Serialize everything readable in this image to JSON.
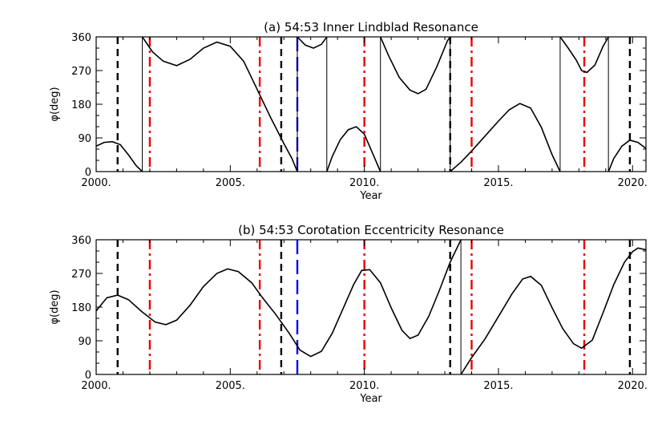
{
  "chart_data": [
    {
      "type": "line",
      "title": "(a) 54:53 Inner Lindblad Resonance",
      "xlabel": "Year",
      "ylabel": "φ(deg)",
      "xlim": [
        2000,
        2020.5
      ],
      "ylim": [
        0,
        360
      ],
      "xticks": [
        2000,
        2005,
        2010,
        2015,
        2020
      ],
      "xtick_labels": [
        "2000.",
        "2005.",
        "2010.",
        "2015.",
        "2020."
      ],
      "yticks": [
        0,
        90,
        180,
        270,
        360
      ],
      "ytick_labels": [
        "0",
        "90",
        "180",
        "270",
        "360"
      ],
      "series": [
        {
          "name": "phi",
          "color": "#000000",
          "segments": [
            [
              [
                2000.0,
                68
              ],
              [
                2000.3,
                78
              ],
              [
                2000.6,
                80
              ],
              [
                2000.9,
                72
              ],
              [
                2001.2,
                45
              ],
              [
                2001.5,
                15
              ],
              [
                2001.72,
                0
              ]
            ],
            [
              [
                2001.72,
                360
              ],
              [
                2002.1,
                320
              ],
              [
                2002.5,
                295
              ],
              [
                2003.0,
                283
              ],
              [
                2003.5,
                300
              ],
              [
                2004.0,
                330
              ],
              [
                2004.5,
                346
              ],
              [
                2005.0,
                335
              ],
              [
                2005.5,
                295
              ],
              [
                2006.0,
                220
              ],
              [
                2006.5,
                145
              ],
              [
                2007.0,
                75
              ],
              [
                2007.3,
                35
              ],
              [
                2007.5,
                0
              ]
            ],
            [
              [
                2007.5,
                360
              ],
              [
                2007.8,
                338
              ],
              [
                2008.1,
                330
              ],
              [
                2008.4,
                340
              ],
              [
                2008.6,
                360
              ]
            ],
            [
              [
                2008.6,
                0
              ],
              [
                2008.8,
                40
              ],
              [
                2009.1,
                85
              ],
              [
                2009.4,
                112
              ],
              [
                2009.7,
                120
              ],
              [
                2010.0,
                100
              ],
              [
                2010.3,
                50
              ],
              [
                2010.6,
                0
              ]
            ],
            [
              [
                2010.6,
                360
              ],
              [
                2010.9,
                310
              ],
              [
                2011.3,
                252
              ],
              [
                2011.7,
                218
              ],
              [
                2012.0,
                208
              ],
              [
                2012.3,
                220
              ],
              [
                2012.7,
                280
              ],
              [
                2013.1,
                350
              ],
              [
                2013.2,
                360
              ]
            ],
            [
              [
                2013.2,
                0
              ],
              [
                2013.6,
                25
              ],
              [
                2014.0,
                55
              ],
              [
                2014.5,
                95
              ],
              [
                2015.0,
                135
              ],
              [
                2015.4,
                165
              ],
              [
                2015.8,
                182
              ],
              [
                2016.2,
                170
              ],
              [
                2016.6,
                118
              ],
              [
                2017.0,
                45
              ],
              [
                2017.3,
                0
              ]
            ],
            [
              [
                2017.3,
                360
              ],
              [
                2017.6,
                330
              ],
              [
                2017.9,
                298
              ],
              [
                2018.1,
                270
              ],
              [
                2018.3,
                265
              ],
              [
                2018.6,
                285
              ],
              [
                2018.9,
                335
              ],
              [
                2019.1,
                360
              ]
            ],
            [
              [
                2019.1,
                0
              ],
              [
                2019.3,
                35
              ],
              [
                2019.6,
                68
              ],
              [
                2019.9,
                84
              ],
              [
                2020.2,
                78
              ],
              [
                2020.5,
                62
              ]
            ]
          ]
        }
      ],
      "vlines": [
        {
          "x": 2000.8,
          "color": "#000000",
          "style": "dashed"
        },
        {
          "x": 2002.0,
          "color": "#ee0000",
          "style": "dashdot"
        },
        {
          "x": 2006.1,
          "color": "#ee0000",
          "style": "dashdot"
        },
        {
          "x": 2006.9,
          "color": "#000000",
          "style": "dashed"
        },
        {
          "x": 2007.5,
          "color": "#0000ff",
          "style": "longdash"
        },
        {
          "x": 2010.0,
          "color": "#ee0000",
          "style": "dashdot"
        },
        {
          "x": 2013.2,
          "color": "#000000",
          "style": "dashed"
        },
        {
          "x": 2014.0,
          "color": "#ee0000",
          "style": "dashdot"
        },
        {
          "x": 2018.2,
          "color": "#ee0000",
          "style": "dashdot"
        },
        {
          "x": 2019.9,
          "color": "#000000",
          "style": "dashed"
        }
      ]
    },
    {
      "type": "line",
      "title": "(b) 54:53 Corotation Eccentricity Resonance",
      "xlabel": "Year",
      "ylabel": "φ(deg)",
      "xlim": [
        2000,
        2020.5
      ],
      "ylim": [
        0,
        360
      ],
      "xticks": [
        2000,
        2005,
        2010,
        2015,
        2020
      ],
      "xtick_labels": [
        "2000.",
        "2005.",
        "2010.",
        "2015.",
        "2020."
      ],
      "yticks": [
        0,
        90,
        180,
        270,
        360
      ],
      "ytick_labels": [
        "0",
        "90",
        "180",
        "270",
        "360"
      ],
      "series": [
        {
          "name": "phi",
          "color": "#000000",
          "segments": [
            [
              [
                2000.0,
                170
              ],
              [
                2000.4,
                205
              ],
              [
                2000.8,
                212
              ],
              [
                2001.2,
                200
              ],
              [
                2001.7,
                168
              ],
              [
                2002.2,
                140
              ],
              [
                2002.6,
                133
              ],
              [
                2003.0,
                145
              ],
              [
                2003.5,
                185
              ],
              [
                2004.0,
                235
              ],
              [
                2004.5,
                270
              ],
              [
                2004.9,
                282
              ],
              [
                2005.3,
                275
              ],
              [
                2005.8,
                245
              ],
              [
                2006.2,
                205
              ],
              [
                2006.7,
                160
              ],
              [
                2007.2,
                110
              ],
              [
                2007.6,
                65
              ],
              [
                2008.0,
                48
              ],
              [
                2008.4,
                62
              ],
              [
                2008.8,
                110
              ],
              [
                2009.2,
                175
              ],
              [
                2009.6,
                240
              ],
              [
                2009.9,
                278
              ],
              [
                2010.2,
                280
              ],
              [
                2010.6,
                245
              ],
              [
                2011.0,
                178
              ],
              [
                2011.4,
                118
              ],
              [
                2011.7,
                96
              ],
              [
                2012.0,
                105
              ],
              [
                2012.4,
                155
              ],
              [
                2012.8,
                225
              ],
              [
                2013.2,
                300
              ],
              [
                2013.6,
                360
              ]
            ],
            [
              [
                2013.6,
                0
              ],
              [
                2014.0,
                45
              ],
              [
                2014.5,
                95
              ],
              [
                2015.0,
                155
              ],
              [
                2015.5,
                215
              ],
              [
                2015.9,
                255
              ],
              [
                2016.2,
                262
              ],
              [
                2016.6,
                238
              ],
              [
                2017.0,
                178
              ],
              [
                2017.4,
                122
              ],
              [
                2017.8,
                82
              ],
              [
                2018.1,
                70
              ],
              [
                2018.5,
                92
              ],
              [
                2018.9,
                165
              ],
              [
                2019.3,
                240
              ],
              [
                2019.7,
                300
              ],
              [
                2020.0,
                328
              ],
              [
                2020.2,
                338
              ],
              [
                2020.5,
                333
              ]
            ]
          ]
        }
      ],
      "vlines": [
        {
          "x": 2000.8,
          "color": "#000000",
          "style": "dashed"
        },
        {
          "x": 2002.0,
          "color": "#ee0000",
          "style": "dashdot"
        },
        {
          "x": 2006.1,
          "color": "#ee0000",
          "style": "dashdot"
        },
        {
          "x": 2006.9,
          "color": "#000000",
          "style": "dashed"
        },
        {
          "x": 2007.5,
          "color": "#0000ff",
          "style": "longdash"
        },
        {
          "x": 2010.0,
          "color": "#ee0000",
          "style": "dashdot"
        },
        {
          "x": 2013.2,
          "color": "#000000",
          "style": "dashed"
        },
        {
          "x": 2014.0,
          "color": "#ee0000",
          "style": "dashdot"
        },
        {
          "x": 2018.2,
          "color": "#ee0000",
          "style": "dashdot"
        },
        {
          "x": 2019.9,
          "color": "#000000",
          "style": "dashed"
        }
      ]
    }
  ]
}
